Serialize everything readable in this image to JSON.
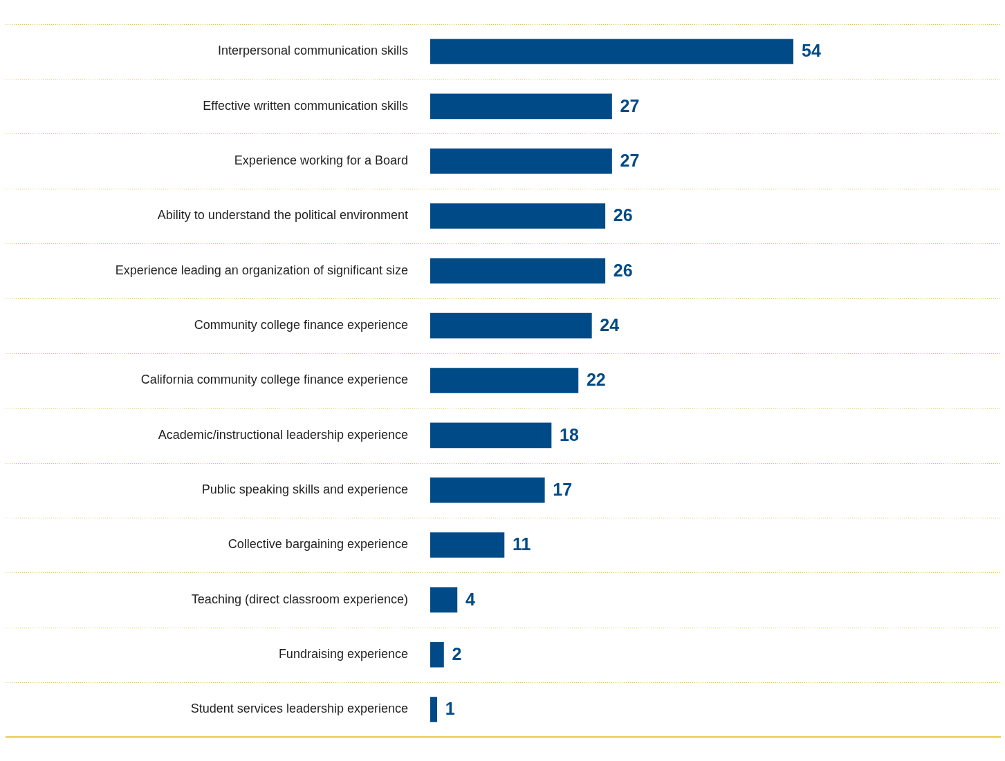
{
  "chart_data": {
    "type": "bar",
    "orientation": "horizontal",
    "categories": [
      "Interpersonal communication skills",
      "Effective written communication skills",
      "Experience working for a Board",
      "Ability to understand the political environment",
      "Experience leading an organization of significant size",
      "Community college finance experience",
      "California community college finance experience",
      "Academic/instructional leadership experience",
      "Public speaking skills and experience",
      "Collective bargaining experience",
      "Teaching (direct classroom experience)",
      "Fundraising experience",
      "Student services leadership experience"
    ],
    "values": [
      54,
      27,
      27,
      26,
      26,
      24,
      22,
      18,
      17,
      11,
      4,
      2,
      1
    ],
    "color": "#004b87",
    "data_labels": true,
    "grid": "y"
  }
}
